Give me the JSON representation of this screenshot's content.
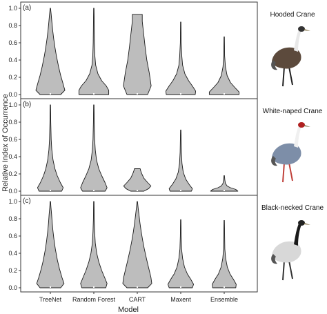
{
  "chart_data": {
    "type": "violin",
    "ylabel": "Relative Index of Occurrence",
    "xlabel": "Model",
    "categories": [
      "TreeNet",
      "Random Forest",
      "CART",
      "Maxent",
      "Ensemble"
    ],
    "ylim": [
      0,
      1.0
    ],
    "yticks": [
      "0.0",
      "0.2",
      "0.4",
      "0.6",
      "0.8",
      "1.0"
    ],
    "colors": {
      "fill": "#bdbdbd",
      "stroke": "#1a1a1a",
      "frame": "#333333"
    },
    "panels": [
      {
        "tag": "(a)",
        "species": "Hooded Crane",
        "violins": [
          {
            "model": "TreeNet",
            "max": 1.0,
            "profile": [
              [
                0,
                0.5
              ],
              [
                0.05,
                0.7
              ],
              [
                0.12,
                0.62
              ],
              [
                0.22,
                0.5
              ],
              [
                0.32,
                0.4
              ],
              [
                0.45,
                0.29
              ],
              [
                0.55,
                0.22
              ],
              [
                0.65,
                0.16
              ],
              [
                0.75,
                0.11
              ],
              [
                0.85,
                0.07
              ],
              [
                0.93,
                0.04
              ],
              [
                1.0,
                0.01
              ]
            ]
          },
          {
            "model": "Random Forest",
            "max": 1.0,
            "profile": [
              [
                0,
                0.72
              ],
              [
                0.05,
                0.72
              ],
              [
                0.1,
                0.6
              ],
              [
                0.16,
                0.38
              ],
              [
                0.24,
                0.2
              ],
              [
                0.34,
                0.09
              ],
              [
                0.45,
                0.05
              ],
              [
                0.6,
                0.03
              ],
              [
                0.8,
                0.02
              ],
              [
                1.0,
                0.01
              ]
            ]
          },
          {
            "model": "CART",
            "max": 0.93,
            "profile": [
              [
                0,
                0.5
              ],
              [
                0.1,
                0.67
              ],
              [
                0.25,
                0.58
              ],
              [
                0.4,
                0.46
              ],
              [
                0.55,
                0.38
              ],
              [
                0.7,
                0.31
              ],
              [
                0.85,
                0.24
              ],
              [
                0.93,
                0.24
              ]
            ]
          },
          {
            "model": "Maxent",
            "max": 0.84,
            "profile": [
              [
                0,
                0.7
              ],
              [
                0.04,
                0.72
              ],
              [
                0.1,
                0.56
              ],
              [
                0.16,
                0.38
              ],
              [
                0.24,
                0.2
              ],
              [
                0.34,
                0.09
              ],
              [
                0.45,
                0.05
              ],
              [
                0.6,
                0.02
              ],
              [
                0.84,
                0.01
              ]
            ]
          },
          {
            "model": "Ensemble",
            "max": 0.67,
            "profile": [
              [
                0,
                0.72
              ],
              [
                0.03,
                0.72
              ],
              [
                0.08,
                0.52
              ],
              [
                0.14,
                0.3
              ],
              [
                0.22,
                0.14
              ],
              [
                0.32,
                0.06
              ],
              [
                0.45,
                0.02
              ],
              [
                0.67,
                0.01
              ]
            ]
          }
        ]
      },
      {
        "tag": "(b)",
        "species": "White-naped Crane",
        "violins": [
          {
            "model": "TreeNet",
            "max": 1.0,
            "profile": [
              [
                0,
                0.55
              ],
              [
                0.04,
                0.62
              ],
              [
                0.1,
                0.48
              ],
              [
                0.18,
                0.33
              ],
              [
                0.26,
                0.22
              ],
              [
                0.36,
                0.13
              ],
              [
                0.48,
                0.07
              ],
              [
                0.6,
                0.04
              ],
              [
                0.8,
                0.02
              ],
              [
                1.0,
                0.01
              ]
            ]
          },
          {
            "model": "Random Forest",
            "max": 1.0,
            "profile": [
              [
                0,
                0.55
              ],
              [
                0.04,
                0.64
              ],
              [
                0.1,
                0.54
              ],
              [
                0.18,
                0.38
              ],
              [
                0.26,
                0.24
              ],
              [
                0.36,
                0.13
              ],
              [
                0.48,
                0.07
              ],
              [
                0.6,
                0.04
              ],
              [
                0.8,
                0.02
              ],
              [
                1.0,
                0.01
              ]
            ]
          },
          {
            "model": "CART",
            "max": 0.26,
            "profile": [
              [
                0,
                0.32
              ],
              [
                0.03,
                0.55
              ],
              [
                0.06,
                0.66
              ],
              [
                0.1,
                0.5
              ],
              [
                0.15,
                0.32
              ],
              [
                0.2,
                0.22
              ],
              [
                0.24,
                0.16
              ],
              [
                0.26,
                0.14
              ]
            ]
          },
          {
            "model": "Maxent",
            "max": 0.71,
            "profile": [
              [
                0,
                0.52
              ],
              [
                0.03,
                0.56
              ],
              [
                0.08,
                0.4
              ],
              [
                0.14,
                0.24
              ],
              [
                0.22,
                0.12
              ],
              [
                0.32,
                0.06
              ],
              [
                0.45,
                0.03
              ],
              [
                0.71,
                0.01
              ]
            ]
          },
          {
            "model": "Ensemble",
            "max": 0.18,
            "profile": [
              [
                0,
                0.66
              ],
              [
                0.02,
                0.56
              ],
              [
                0.04,
                0.3
              ],
              [
                0.06,
                0.14
              ],
              [
                0.09,
                0.06
              ],
              [
                0.13,
                0.03
              ],
              [
                0.18,
                0.01
              ]
            ]
          }
        ]
      },
      {
        "tag": "(c)",
        "species": "Black-necked Crane",
        "violins": [
          {
            "model": "TreeNet",
            "max": 1.0,
            "profile": [
              [
                0,
                0.5
              ],
              [
                0.05,
                0.66
              ],
              [
                0.12,
                0.56
              ],
              [
                0.22,
                0.44
              ],
              [
                0.32,
                0.34
              ],
              [
                0.45,
                0.24
              ],
              [
                0.55,
                0.18
              ],
              [
                0.65,
                0.13
              ],
              [
                0.75,
                0.09
              ],
              [
                0.85,
                0.06
              ],
              [
                0.93,
                0.03
              ],
              [
                1.0,
                0.01
              ]
            ]
          },
          {
            "model": "Random Forest",
            "max": 1.0,
            "profile": [
              [
                0,
                0.58
              ],
              [
                0.05,
                0.64
              ],
              [
                0.12,
                0.52
              ],
              [
                0.2,
                0.38
              ],
              [
                0.3,
                0.24
              ],
              [
                0.4,
                0.14
              ],
              [
                0.52,
                0.07
              ],
              [
                0.65,
                0.04
              ],
              [
                0.8,
                0.02
              ],
              [
                1.0,
                0.01
              ]
            ]
          },
          {
            "model": "CART",
            "max": 1.0,
            "profile": [
              [
                0,
                0.5
              ],
              [
                0.05,
                0.7
              ],
              [
                0.12,
                0.66
              ],
              [
                0.22,
                0.56
              ],
              [
                0.32,
                0.46
              ],
              [
                0.45,
                0.34
              ],
              [
                0.55,
                0.26
              ],
              [
                0.65,
                0.19
              ],
              [
                0.75,
                0.13
              ],
              [
                0.85,
                0.08
              ],
              [
                0.93,
                0.04
              ],
              [
                1.0,
                0.01
              ]
            ]
          },
          {
            "model": "Maxent",
            "max": 0.79,
            "profile": [
              [
                0,
                0.56
              ],
              [
                0.04,
                0.62
              ],
              [
                0.1,
                0.48
              ],
              [
                0.16,
                0.32
              ],
              [
                0.24,
                0.18
              ],
              [
                0.34,
                0.09
              ],
              [
                0.45,
                0.04
              ],
              [
                0.6,
                0.02
              ],
              [
                0.79,
                0.01
              ]
            ]
          },
          {
            "model": "Ensemble",
            "max": 0.78,
            "profile": [
              [
                0,
                0.56
              ],
              [
                0.04,
                0.58
              ],
              [
                0.1,
                0.44
              ],
              [
                0.16,
                0.28
              ],
              [
                0.24,
                0.15
              ],
              [
                0.34,
                0.07
              ],
              [
                0.45,
                0.03
              ],
              [
                0.6,
                0.02
              ],
              [
                0.78,
                0.01
              ]
            ]
          }
        ]
      }
    ]
  }
}
